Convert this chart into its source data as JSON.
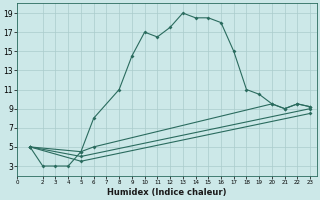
{
  "title": "",
  "xlabel": "Humidex (Indice chaleur)",
  "bg_color": "#cce8e8",
  "grid_color": "#aacccc",
  "line_color": "#2a6b5e",
  "xlim": [
    0,
    23.5
  ],
  "ylim": [
    2.0,
    20.0
  ],
  "xticks": [
    0,
    2,
    3,
    4,
    5,
    6,
    7,
    8,
    9,
    10,
    11,
    12,
    13,
    14,
    15,
    16,
    17,
    18,
    19,
    20,
    21,
    22,
    23
  ],
  "yticks": [
    3,
    5,
    7,
    9,
    11,
    13,
    15,
    17,
    19
  ],
  "curve1_x": [
    1,
    2,
    3,
    4,
    5,
    6,
    8,
    9,
    10,
    11,
    12,
    13,
    14,
    15,
    16,
    17,
    18,
    19,
    20,
    21,
    22,
    23
  ],
  "curve1_y": [
    5,
    3,
    3,
    3,
    4.5,
    8,
    11,
    14.5,
    17,
    16.5,
    17.5,
    19,
    18.5,
    18.5,
    18.0,
    15.0,
    11.0,
    10.5,
    9.5,
    9.0,
    9.5,
    9.2
  ],
  "curve2_x": [
    1,
    5,
    6,
    20,
    21,
    22,
    23
  ],
  "curve2_y": [
    5,
    4.5,
    5.0,
    9.5,
    9.0,
    9.5,
    9.2
  ],
  "curve3_x": [
    1,
    5,
    23
  ],
  "curve3_y": [
    5,
    4.0,
    9.0
  ],
  "curve4_x": [
    1,
    5,
    23
  ],
  "curve4_y": [
    5,
    3.5,
    8.5
  ]
}
